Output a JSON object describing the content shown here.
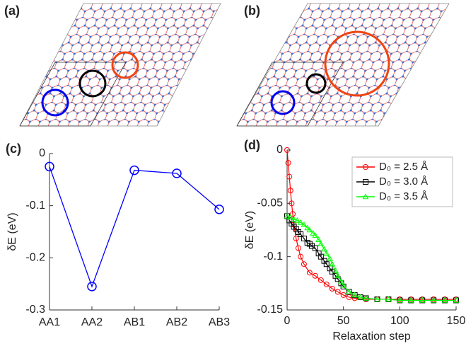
{
  "images": [
    {
      "label": "(a)"
    },
    {
      "label": "(b)"
    }
  ],
  "chart_data": [
    {
      "type": "line",
      "panel_label": "(c)",
      "ylabel": "δE (eV)",
      "categories": [
        "AA1",
        "AA2",
        "AB1",
        "AB2",
        "AB3"
      ],
      "values": [
        -0.025,
        -0.255,
        -0.032,
        -0.038,
        -0.107
      ],
      "color": "#0000ff",
      "marker": "circle",
      "ylim": [
        -0.3,
        0
      ],
      "yticks": [
        -0.3,
        -0.2,
        -0.1,
        0
      ]
    },
    {
      "type": "line",
      "panel_label": "(d)",
      "xlabel": "Relaxation step",
      "ylabel": "δE (eV)",
      "xlim": [
        0,
        150
      ],
      "xticks": [
        0,
        50,
        100,
        150
      ],
      "ylim": [
        -0.15,
        0
      ],
      "yticks": [
        -0.15,
        -0.1,
        -0.05,
        0
      ],
      "legend": "upper right",
      "series": [
        {
          "name": "D₀ = 2.5 Å",
          "color": "#ff0000",
          "marker": "circle",
          "x": [
            0,
            1,
            2,
            3,
            4,
            5,
            6,
            8,
            10,
            12,
            15,
            20,
            25,
            30,
            35,
            40,
            45,
            50,
            55,
            60,
            70,
            80,
            90,
            100,
            110,
            120,
            130,
            140,
            150
          ],
          "values": [
            0,
            -0.012,
            -0.025,
            -0.038,
            -0.05,
            -0.06,
            -0.07,
            -0.083,
            -0.092,
            -0.1,
            -0.107,
            -0.115,
            -0.118,
            -0.122,
            -0.126,
            -0.13,
            -0.133,
            -0.136,
            -0.138,
            -0.139,
            -0.14,
            -0.14,
            -0.14,
            -0.14,
            -0.14,
            -0.14,
            -0.14,
            -0.14,
            -0.14
          ]
        },
        {
          "name": "D₀ = 3.0 Å",
          "color": "#000000",
          "marker": "square",
          "x": [
            0,
            2,
            4,
            6,
            8,
            10,
            12,
            15,
            18,
            20,
            22,
            25,
            28,
            30,
            33,
            35,
            38,
            40,
            43,
            45,
            48,
            50,
            55,
            60,
            65,
            70,
            80,
            90,
            100,
            110,
            120,
            130,
            140,
            150
          ],
          "values": [
            -0.062,
            -0.066,
            -0.069,
            -0.072,
            -0.074,
            -0.077,
            -0.079,
            -0.083,
            -0.087,
            -0.088,
            -0.09,
            -0.092,
            -0.097,
            -0.1,
            -0.104,
            -0.107,
            -0.111,
            -0.114,
            -0.118,
            -0.121,
            -0.125,
            -0.128,
            -0.133,
            -0.136,
            -0.138,
            -0.139,
            -0.14,
            -0.14,
            -0.141,
            -0.141,
            -0.141,
            -0.141,
            -0.141,
            -0.141
          ]
        },
        {
          "name": "D₀ = 3.5 Å",
          "color": "#00ff00",
          "marker": "triangle",
          "x": [
            0,
            3,
            6,
            9,
            12,
            15,
            18,
            20,
            23,
            25,
            28,
            30,
            33,
            35,
            38,
            40,
            43,
            45,
            48,
            50,
            55,
            60,
            65,
            70,
            80,
            90,
            100,
            110,
            120,
            130,
            140,
            150
          ],
          "values": [
            -0.062,
            -0.063,
            -0.065,
            -0.066,
            -0.068,
            -0.07,
            -0.073,
            -0.075,
            -0.078,
            -0.08,
            -0.084,
            -0.088,
            -0.093,
            -0.097,
            -0.102,
            -0.107,
            -0.113,
            -0.118,
            -0.123,
            -0.127,
            -0.133,
            -0.136,
            -0.138,
            -0.139,
            -0.14,
            -0.14,
            -0.141,
            -0.141,
            -0.141,
            -0.141,
            -0.141,
            -0.141
          ]
        }
      ]
    }
  ]
}
